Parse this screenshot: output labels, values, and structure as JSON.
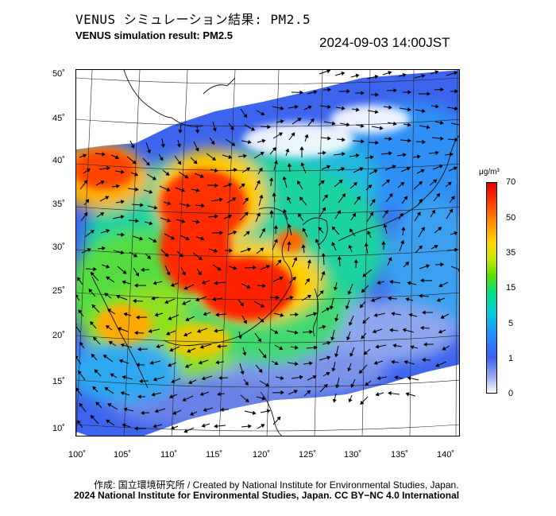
{
  "header": {
    "title_ja": "VENUS シミュレーション結果: PM2.5",
    "title_en": "VENUS simulation result: PM2.5",
    "timestamp": "2024-09-03 14:00JST"
  },
  "map": {
    "type": "pm25-concentration-map",
    "lon_range": [
      100,
      142
    ],
    "lat_range": [
      9,
      51
    ],
    "lon_ticks": [
      "100˚",
      "105˚",
      "110˚",
      "115˚",
      "120˚",
      "125˚",
      "130˚",
      "135˚",
      "140˚"
    ],
    "lat_ticks": [
      "50˚",
      "45˚",
      "40˚",
      "35˚",
      "30˚",
      "25˚",
      "20˚",
      "15˚",
      "10˚"
    ],
    "has_wind_vectors": true,
    "has_coastlines": true,
    "has_graticule": true,
    "hotspots": [
      {
        "region": "North China Plain",
        "level": "high"
      },
      {
        "region": "Bohai / Liaodong",
        "level": "high"
      },
      {
        "region": "South China / Guangdong",
        "level": "high"
      }
    ]
  },
  "colorbar": {
    "unit": "μg/m³",
    "labels": [
      "70",
      "50",
      "35",
      "15",
      "5",
      "1",
      "0"
    ],
    "colors": [
      "#e00000",
      "#ff8800",
      "#ffd400",
      "#60e000",
      "#00d0e0",
      "#3d5ff0",
      "#ffffff"
    ]
  },
  "footer": {
    "credit": "作成: 国立環境研究所 / Created by National Institute for Environmental Studies, Japan.",
    "copyright": "2024 National Institute for Environmental Studies, Japan. CC BY−NC 4.0 International"
  }
}
